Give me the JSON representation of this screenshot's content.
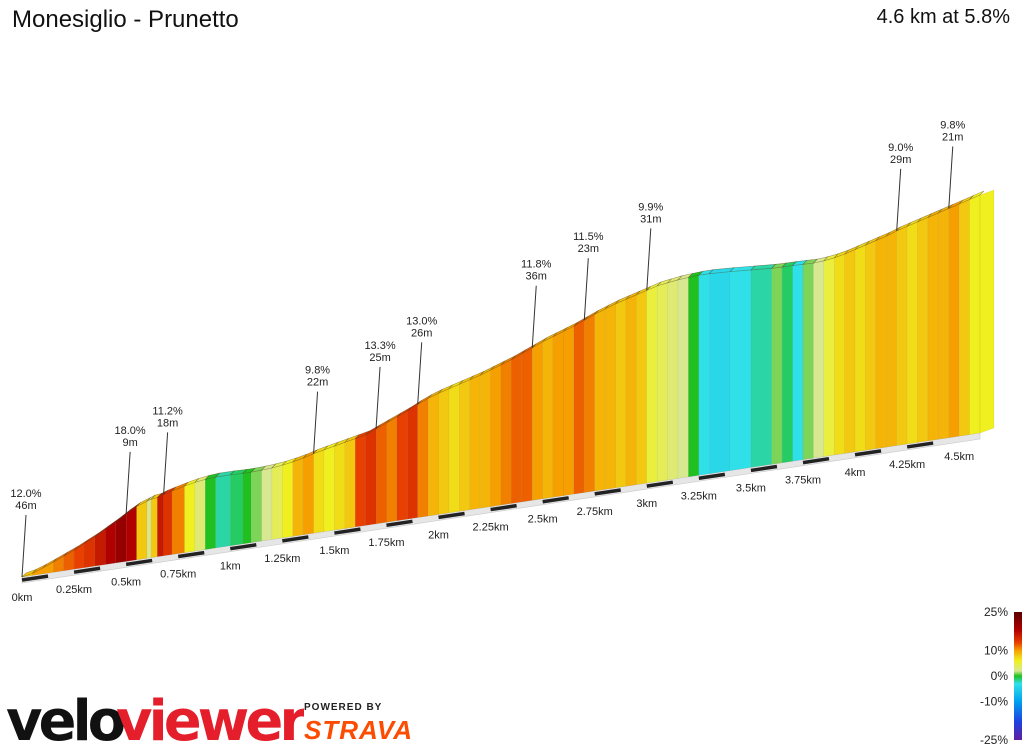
{
  "header": {
    "title": "Monesiglio - Prunetto",
    "summary": "4.6 km at 5.8%"
  },
  "chart_data": {
    "type": "area",
    "x_unit": "km",
    "total_km": 4.6,
    "distance_ticks": [
      {
        "km": 0,
        "label": "0km"
      },
      {
        "km": 0.25,
        "label": "0.25km"
      },
      {
        "km": 0.5,
        "label": "0.5km"
      },
      {
        "km": 0.75,
        "label": "0.75km"
      },
      {
        "km": 1,
        "label": "1km"
      },
      {
        "km": 1.25,
        "label": "1.25km"
      },
      {
        "km": 1.5,
        "label": "1.5km"
      },
      {
        "km": 1.75,
        "label": "1.75km"
      },
      {
        "km": 2,
        "label": "2km"
      },
      {
        "km": 2.25,
        "label": "2.25km"
      },
      {
        "km": 2.5,
        "label": "2.5km"
      },
      {
        "km": 2.75,
        "label": "2.75km"
      },
      {
        "km": 3,
        "label": "3km"
      },
      {
        "km": 3.25,
        "label": "3.25km"
      },
      {
        "km": 3.5,
        "label": "3.5km"
      },
      {
        "km": 3.75,
        "label": "3.75km"
      },
      {
        "km": 4,
        "label": "4km"
      },
      {
        "km": 4.25,
        "label": "4.25km"
      },
      {
        "km": 4.5,
        "label": "4.5km"
      }
    ],
    "profile": [
      {
        "km": 0.0,
        "gain_m": 0,
        "grade": 4
      },
      {
        "km": 0.05,
        "gain_m": 3,
        "grade": 8
      },
      {
        "km": 0.1,
        "gain_m": 8,
        "grade": 10
      },
      {
        "km": 0.15,
        "gain_m": 14,
        "grade": 10
      },
      {
        "km": 0.2,
        "gain_m": 20,
        "grade": 11
      },
      {
        "km": 0.25,
        "gain_m": 26,
        "grade": 12
      },
      {
        "km": 0.3,
        "gain_m": 33,
        "grade": 13
      },
      {
        "km": 0.35,
        "gain_m": 40,
        "grade": 14
      },
      {
        "km": 0.4,
        "gain_m": 48,
        "grade": 16
      },
      {
        "km": 0.45,
        "gain_m": 56,
        "grade": 18
      },
      {
        "km": 0.5,
        "gain_m": 65,
        "grade": 20
      },
      {
        "km": 0.55,
        "gain_m": 73,
        "grade": 18
      },
      {
        "km": 0.6,
        "gain_m": 78,
        "grade": 8
      },
      {
        "km": 0.62,
        "gain_m": 80,
        "grade": 2
      },
      {
        "km": 0.65,
        "gain_m": 81,
        "grade": 8
      },
      {
        "km": 0.68,
        "gain_m": 84,
        "grade": 16
      },
      {
        "km": 0.72,
        "gain_m": 87,
        "grade": 14
      },
      {
        "km": 0.78,
        "gain_m": 91,
        "grade": 11
      },
      {
        "km": 0.83,
        "gain_m": 94,
        "grade": 6
      },
      {
        "km": 0.88,
        "gain_m": 96,
        "grade": 3
      },
      {
        "km": 0.93,
        "gain_m": 97,
        "grade": 0
      },
      {
        "km": 1.0,
        "gain_m": 97,
        "grade": -2
      },
      {
        "km": 1.06,
        "gain_m": 96.5,
        "grade": -1
      },
      {
        "km": 1.1,
        "gain_m": 96.5,
        "grade": 0
      },
      {
        "km": 1.15,
        "gain_m": 97,
        "grade": 1
      },
      {
        "km": 1.2,
        "gain_m": 98,
        "grade": 2
      },
      {
        "km": 1.25,
        "gain_m": 99.5,
        "grade": 4
      },
      {
        "km": 1.3,
        "gain_m": 102,
        "grade": 6
      },
      {
        "km": 1.35,
        "gain_m": 105,
        "grade": 9
      },
      {
        "km": 1.4,
        "gain_m": 109,
        "grade": 10
      },
      {
        "km": 1.45,
        "gain_m": 112,
        "grade": 7
      },
      {
        "km": 1.5,
        "gain_m": 115,
        "grade": 6
      },
      {
        "km": 1.55,
        "gain_m": 118,
        "grade": 7
      },
      {
        "km": 1.6,
        "gain_m": 121,
        "grade": 8
      },
      {
        "km": 1.65,
        "gain_m": 124,
        "grade": 13
      },
      {
        "km": 1.7,
        "gain_m": 130,
        "grade": 14
      },
      {
        "km": 1.75,
        "gain_m": 136,
        "grade": 12
      },
      {
        "km": 1.8,
        "gain_m": 142,
        "grade": 11
      },
      {
        "km": 1.85,
        "gain_m": 148,
        "grade": 13
      },
      {
        "km": 1.9,
        "gain_m": 155,
        "grade": 14
      },
      {
        "km": 1.95,
        "gain_m": 161,
        "grade": 11
      },
      {
        "km": 2.0,
        "gain_m": 166,
        "grade": 9
      },
      {
        "km": 2.05,
        "gain_m": 170,
        "grade": 8
      },
      {
        "km": 2.1,
        "gain_m": 174,
        "grade": 7
      },
      {
        "km": 2.15,
        "gain_m": 178,
        "grade": 8
      },
      {
        "km": 2.2,
        "gain_m": 182,
        "grade": 9
      },
      {
        "km": 2.25,
        "gain_m": 187,
        "grade": 9
      },
      {
        "km": 2.3,
        "gain_m": 192,
        "grade": 10
      },
      {
        "km": 2.35,
        "gain_m": 197,
        "grade": 11
      },
      {
        "km": 2.4,
        "gain_m": 203,
        "grade": 12
      },
      {
        "km": 2.45,
        "gain_m": 209,
        "grade": 12
      },
      {
        "km": 2.5,
        "gain_m": 215,
        "grade": 10
      },
      {
        "km": 2.55,
        "gain_m": 220,
        "grade": 9
      },
      {
        "km": 2.6,
        "gain_m": 225,
        "grade": 10
      },
      {
        "km": 2.65,
        "gain_m": 230,
        "grade": 10
      },
      {
        "km": 2.7,
        "gain_m": 236,
        "grade": 12
      },
      {
        "km": 2.75,
        "gain_m": 242,
        "grade": 11
      },
      {
        "km": 2.8,
        "gain_m": 247,
        "grade": 9
      },
      {
        "km": 2.85,
        "gain_m": 252,
        "grade": 9
      },
      {
        "km": 2.9,
        "gain_m": 256,
        "grade": 8
      },
      {
        "km": 2.95,
        "gain_m": 260,
        "grade": 9
      },
      {
        "km": 3.0,
        "gain_m": 264,
        "grade": 8
      },
      {
        "km": 3.05,
        "gain_m": 268,
        "grade": 5
      },
      {
        "km": 3.1,
        "gain_m": 270,
        "grade": 4
      },
      {
        "km": 3.15,
        "gain_m": 272,
        "grade": 3
      },
      {
        "km": 3.2,
        "gain_m": 273,
        "grade": 2
      },
      {
        "km": 3.25,
        "gain_m": 274,
        "grade": 0
      },
      {
        "km": 3.3,
        "gain_m": 274,
        "grade": -3
      },
      {
        "km": 3.4,
        "gain_m": 272.5,
        "grade": -4
      },
      {
        "km": 3.5,
        "gain_m": 270.5,
        "grade": -3
      },
      {
        "km": 3.6,
        "gain_m": 268.5,
        "grade": -2
      },
      {
        "km": 3.65,
        "gain_m": 268,
        "grade": 1
      },
      {
        "km": 3.7,
        "gain_m": 268,
        "grade": -1
      },
      {
        "km": 3.75,
        "gain_m": 267.5,
        "grade": -3
      },
      {
        "km": 3.8,
        "gain_m": 267,
        "grade": 1
      },
      {
        "km": 3.85,
        "gain_m": 268,
        "grade": 2
      },
      {
        "km": 3.9,
        "gain_m": 270,
        "grade": 5
      },
      {
        "km": 3.95,
        "gain_m": 273,
        "grade": 7
      },
      {
        "km": 4.0,
        "gain_m": 277,
        "grade": 8
      },
      {
        "km": 4.05,
        "gain_m": 281,
        "grade": 7
      },
      {
        "km": 4.1,
        "gain_m": 285,
        "grade": 8
      },
      {
        "km": 4.15,
        "gain_m": 289,
        "grade": 9
      },
      {
        "km": 4.2,
        "gain_m": 294,
        "grade": 9
      },
      {
        "km": 4.25,
        "gain_m": 298,
        "grade": 8
      },
      {
        "km": 4.3,
        "gain_m": 302,
        "grade": 7
      },
      {
        "km": 4.35,
        "gain_m": 306,
        "grade": 8
      },
      {
        "km": 4.4,
        "gain_m": 310,
        "grade": 9
      },
      {
        "km": 4.45,
        "gain_m": 314,
        "grade": 9
      },
      {
        "km": 4.5,
        "gain_m": 318,
        "grade": 10
      },
      {
        "km": 4.55,
        "gain_m": 322,
        "grade": 8
      },
      {
        "km": 4.6,
        "gain_m": 326,
        "grade": 6
      }
    ],
    "annotations": [
      {
        "km": 0.0,
        "grade": "12.0%",
        "length": "46m"
      },
      {
        "km": 0.48,
        "grade": "18.0%",
        "length": "9m"
      },
      {
        "km": 0.7,
        "grade": "11.2%",
        "length": "18m"
      },
      {
        "km": 1.38,
        "grade": "9.8%",
        "length": "22m"
      },
      {
        "km": 1.7,
        "grade": "13.3%",
        "length": "25m"
      },
      {
        "km": 1.92,
        "grade": "13.0%",
        "length": "26m"
      },
      {
        "km": 2.45,
        "grade": "11.8%",
        "length": "36m"
      },
      {
        "km": 2.7,
        "grade": "11.5%",
        "length": "23m"
      },
      {
        "km": 2.98,
        "grade": "9.9%",
        "length": "31m"
      },
      {
        "km": 4.2,
        "grade": "9.0%",
        "length": "29m"
      },
      {
        "km": 4.43,
        "grade": "9.8%",
        "length": "21m"
      }
    ],
    "legend": {
      "labels": [
        "25%",
        "10%",
        "0%",
        "-10%",
        "-25%"
      ],
      "stops": [
        {
          "grade": 25,
          "color": "#5a0000"
        },
        {
          "grade": 18,
          "color": "#b00000"
        },
        {
          "grade": 13,
          "color": "#e84000"
        },
        {
          "grade": 10,
          "color": "#f5a000"
        },
        {
          "grade": 6,
          "color": "#f0f020"
        },
        {
          "grade": 2,
          "color": "#d8e890"
        },
        {
          "grade": 0,
          "color": "#20c020"
        },
        {
          "grade": -3,
          "color": "#30e0e8"
        },
        {
          "grade": -10,
          "color": "#00a0f0"
        },
        {
          "grade": -18,
          "color": "#2040e0"
        },
        {
          "grade": -25,
          "color": "#6020a0"
        }
      ]
    }
  },
  "branding": {
    "logo_part1": "velo",
    "logo_part2": "viewer",
    "powered_by": "POWERED BY",
    "strava": "STRAVA"
  }
}
